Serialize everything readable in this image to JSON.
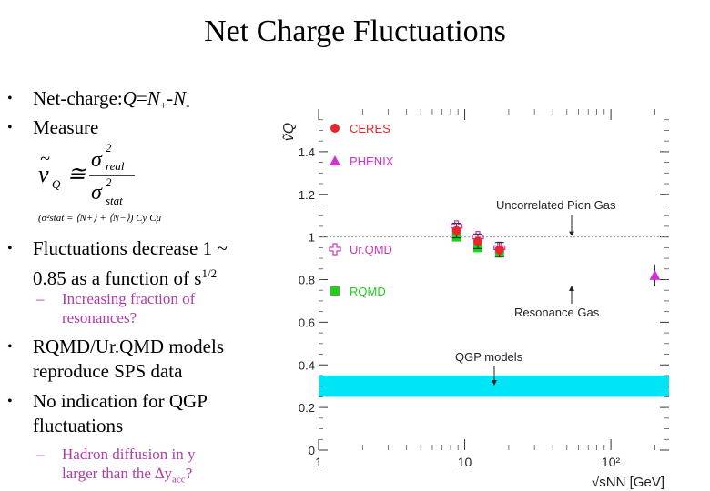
{
  "slide": {
    "title": "Net Charge Fluctuations",
    "bullets": [
      {
        "text": "Net-charge: Q=N+-N-"
      },
      {
        "text": "Measure"
      },
      {
        "text_line1": "Fluctuations decrease 1 ~",
        "text_line2": "0.85 as a function of s1/2"
      },
      {
        "text_line1": "RQMD/Ur.QMD models",
        "text_line2": "reproduce SPS data"
      },
      {
        "text_line1": "No indication for QGP",
        "text_line2": "fluctuations"
      }
    ],
    "subbullets": [
      {
        "line1": "Increasing fraction of",
        "line2": "resonances?"
      },
      {
        "line1": "Hadron diffusion in y",
        "line2": "larger than the Δyacc?"
      }
    ],
    "formula_note": "(σ²stat = ⟨N+⟩ + ⟨N−⟩) Cy Cμ",
    "accent_color": "#b03ca8"
  },
  "chart_data": {
    "type": "scatter",
    "y_axis_label": "ṽQ",
    "x_axis_label": "√sNN [GeV]",
    "x_scale": "log",
    "xlim": [
      1,
      250
    ],
    "ylim": [
      0,
      1.6
    ],
    "y_ticks": [
      "0",
      "0.2",
      "0.4",
      "0.6",
      "0.8",
      "1",
      "1.2",
      "1.4"
    ],
    "x_ticks": [
      "1",
      "10",
      "10²"
    ],
    "series": [
      {
        "name": "CERES",
        "marker": "circle",
        "color": "#e8262e",
        "points": [
          [
            8.8,
            1.03
          ],
          [
            12.3,
            0.98
          ],
          [
            17.3,
            0.94
          ]
        ]
      },
      {
        "name": "PHENIX",
        "marker": "triangle",
        "color": "#d22fd6",
        "points": [
          [
            200,
            0.82
          ]
        ]
      },
      {
        "name": "Ur.QMD",
        "marker": "open-cross",
        "color": "#c43ab8",
        "points": [
          [
            8.8,
            1.05
          ],
          [
            12.3,
            1.0
          ],
          [
            17.3,
            0.95
          ]
        ]
      },
      {
        "name": "RQMD",
        "marker": "square",
        "color": "#22cc22",
        "points": [
          [
            8.8,
            1.0
          ],
          [
            12.3,
            0.95
          ],
          [
            17.3,
            0.93
          ]
        ]
      }
    ],
    "annotations": [
      {
        "text": "Uncorrelated Pion Gas",
        "value": 1.0
      },
      {
        "text": "Resonance Gas",
        "value": 0.8
      },
      {
        "text": "QGP models",
        "band": [
          0.25,
          0.35
        ]
      }
    ],
    "band_color": "#00e5f5"
  }
}
